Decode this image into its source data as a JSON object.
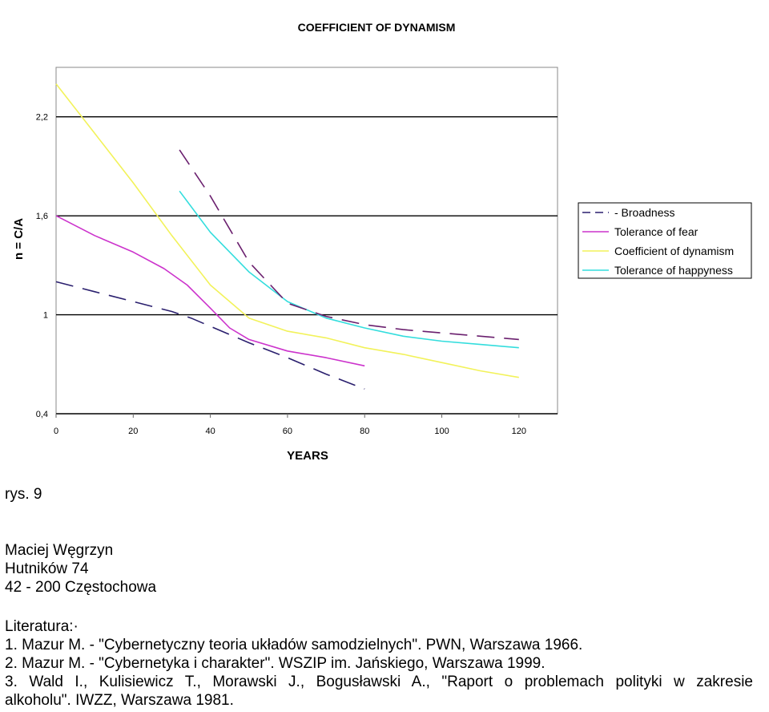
{
  "chart_data": {
    "type": "line",
    "title": "COEFFICIENT OF DYNAMISM",
    "xlabel": "YEARS",
    "ylabel": "n = C/A",
    "xlim": [
      0,
      130
    ],
    "ylim": [
      0.4,
      2.5
    ],
    "x_ticks": [
      0,
      20,
      40,
      60,
      80,
      100,
      120
    ],
    "x_tick_labels": [
      "0",
      "20",
      "40",
      "60",
      "80",
      "100",
      "120"
    ],
    "y_ticks": [
      0.4,
      1,
      1.6,
      2.2
    ],
    "y_tick_labels": [
      "0,4",
      "1",
      "1,6",
      "2,2"
    ],
    "grid": "horizontal",
    "legend_position": "right",
    "series": [
      {
        "name": "- Broadness",
        "color": "#2a1f6e",
        "dash": "long-dash",
        "points": [
          [
            0,
            1.2
          ],
          [
            10,
            1.14
          ],
          [
            20,
            1.08
          ],
          [
            30,
            1.02
          ],
          [
            35,
            0.98
          ],
          [
            40,
            0.93
          ],
          [
            50,
            0.83
          ],
          [
            60,
            0.74
          ],
          [
            70,
            0.64
          ],
          [
            80,
            0.55
          ]
        ]
      },
      {
        "name": "Tolerance of fear",
        "color": "#cc33cc",
        "dash": "solid",
        "points": [
          [
            0,
            1.6
          ],
          [
            10,
            1.48
          ],
          [
            20,
            1.38
          ],
          [
            28,
            1.28
          ],
          [
            34,
            1.18
          ],
          [
            40,
            1.04
          ],
          [
            45,
            0.92
          ],
          [
            50,
            0.85
          ],
          [
            60,
            0.78
          ],
          [
            70,
            0.74
          ],
          [
            80,
            0.69
          ]
        ]
      },
      {
        "name": "Coefficient of dynamism",
        "color": "#f2f25a",
        "dash": "solid",
        "points": [
          [
            0,
            2.4
          ],
          [
            10,
            2.1
          ],
          [
            20,
            1.8
          ],
          [
            30,
            1.48
          ],
          [
            40,
            1.18
          ],
          [
            50,
            0.98
          ],
          [
            60,
            0.9
          ],
          [
            70,
            0.86
          ],
          [
            80,
            0.8
          ],
          [
            90,
            0.76
          ],
          [
            100,
            0.71
          ],
          [
            110,
            0.66
          ],
          [
            120,
            0.62
          ]
        ]
      },
      {
        "name": "Tolerance of happyness",
        "color": "#33dddd",
        "dash": "solid",
        "points": [
          [
            32,
            1.75
          ],
          [
            40,
            1.5
          ],
          [
            50,
            1.26
          ],
          [
            60,
            1.08
          ],
          [
            70,
            0.98
          ],
          [
            80,
            0.92
          ],
          [
            90,
            0.87
          ],
          [
            100,
            0.84
          ],
          [
            110,
            0.82
          ],
          [
            120,
            0.8
          ]
        ]
      },
      {
        "name": "",
        "legend": false,
        "color": "#6a1f6e",
        "dash": "long-dash",
        "points": [
          [
            32,
            2.0
          ],
          [
            40,
            1.72
          ],
          [
            50,
            1.32
          ],
          [
            60,
            1.07
          ],
          [
            70,
            0.99
          ],
          [
            80,
            0.94
          ],
          [
            90,
            0.91
          ],
          [
            100,
            0.89
          ],
          [
            110,
            0.87
          ],
          [
            120,
            0.85
          ]
        ]
      }
    ]
  },
  "caption": {
    "figure_label": "rys. 9"
  },
  "author": {
    "name": "Maciej Węgrzyn",
    "street": "Hutników 74",
    "city": "42 - 200 Częstochowa"
  },
  "literature": {
    "heading": "Literatura:·",
    "refs": [
      "1. Mazur M. - \"Cybernetyczny teoria układów samodzielnych\". PWN, Warszawa 1966.",
      "2. Mazur M. - \"Cybernetyka i charakter\". WSZIP im. Jańskiego, Warszawa 1999.",
      "3. Wald I., Kulisiewicz T., Morawski J., Bogusławski A., \"Raport o problemach polityki w zakresie",
      "alkoholu\". IWZZ, Warszawa 1981."
    ]
  }
}
